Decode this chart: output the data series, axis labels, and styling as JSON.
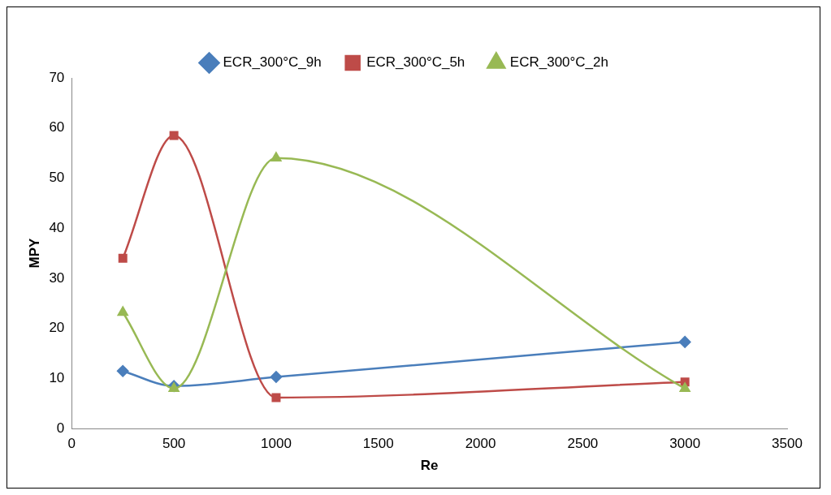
{
  "chart_data": {
    "type": "line",
    "xlabel": "Re",
    "ylabel": "MPY",
    "x": [
      250,
      500,
      1000,
      3000
    ],
    "series": [
      {
        "name": "ECR_300°C_9h",
        "color": "#4a7ebb",
        "marker": "diamond",
        "values": [
          11.5,
          8.5,
          10.3,
          17.3
        ]
      },
      {
        "name": "ECR_300°C_5h",
        "color": "#be4b48",
        "marker": "square",
        "values": [
          34,
          58.5,
          6.2,
          9.3
        ]
      },
      {
        "name": "ECR_300°C_2h",
        "color": "#98b954",
        "marker": "triangle",
        "values": [
          23.2,
          8,
          54,
          8
        ]
      }
    ],
    "xlim": [
      0,
      3500
    ],
    "xticks": [
      0,
      500,
      1000,
      1500,
      2000,
      2500,
      3000,
      3500
    ],
    "ylim": [
      0,
      70
    ],
    "yticks": [
      0,
      10,
      20,
      30,
      40,
      50,
      60,
      70
    ],
    "grid": false,
    "legend": "top",
    "line_style": "solid"
  }
}
